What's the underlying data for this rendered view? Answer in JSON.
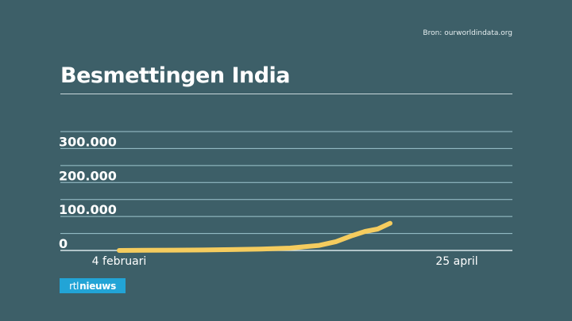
{
  "source": "Bron: ourworldindata.org",
  "title": "Besmettingen India",
  "logo": {
    "part1": "rtl",
    "part2": "nieuws"
  },
  "chart_data": {
    "type": "line",
    "title": "Besmettingen India",
    "x_tick_labels": [
      "4 februari",
      "25 april"
    ],
    "x_range": [
      "2020-02-04",
      "2020-04-25"
    ],
    "ylim": [
      0,
      350000
    ],
    "y_ticks": [
      0,
      100000,
      200000,
      300000
    ],
    "y_tick_labels": [
      "0",
      "100.000",
      "200.000",
      "300.000"
    ],
    "grid": true,
    "legend": "none",
    "colors": {
      "line": "#f5cc5e",
      "grid": "#9ec6cf",
      "text": "#ffffff"
    },
    "series": [
      {
        "x": [
          "2020-02-04",
          "2020-02-10",
          "2020-02-17",
          "2020-02-24",
          "2020-03-02",
          "2020-03-09",
          "2020-03-16",
          "2020-03-23",
          "2020-03-27",
          "2020-03-31",
          "2020-04-03",
          "2020-04-06",
          "2020-04-09"
        ],
        "values": [
          0,
          500,
          1000,
          1500,
          2500,
          4000,
          7000,
          15000,
          26000,
          44000,
          56000,
          63000,
          80000
        ]
      }
    ]
  }
}
